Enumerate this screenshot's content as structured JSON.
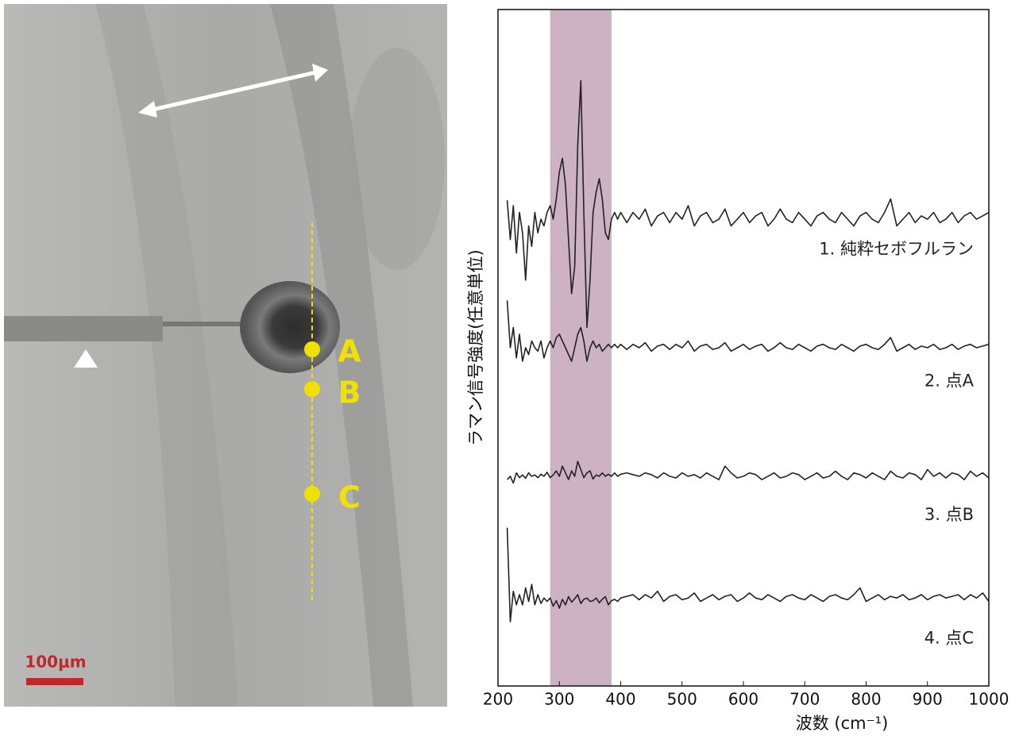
{
  "chart_data": {
    "type": "line",
    "xlabel": "波数 (cm⁻¹)",
    "ylabel": "ラマン信号強度(任意単位)",
    "xlim": [
      200,
      1000
    ],
    "xticks": [
      200,
      300,
      400,
      500,
      600,
      700,
      800,
      900,
      1000
    ],
    "ylim": [
      0,
      100
    ],
    "highlight": [
      285,
      385
    ],
    "highlight_color": "#cdb2c4",
    "x": [
      215,
      220,
      225,
      230,
      235,
      240,
      245,
      250,
      255,
      260,
      265,
      270,
      275,
      280,
      285,
      290,
      295,
      300,
      305,
      310,
      315,
      320,
      325,
      330,
      335,
      340,
      345,
      350,
      355,
      360,
      365,
      370,
      375,
      380,
      385,
      390,
      395,
      400,
      410,
      420,
      430,
      440,
      450,
      460,
      470,
      480,
      490,
      500,
      510,
      520,
      530,
      540,
      550,
      560,
      570,
      580,
      590,
      600,
      610,
      620,
      630,
      640,
      650,
      660,
      670,
      680,
      690,
      700,
      710,
      720,
      730,
      740,
      750,
      760,
      770,
      780,
      790,
      800,
      810,
      820,
      830,
      840,
      850,
      860,
      870,
      880,
      890,
      900,
      910,
      920,
      930,
      940,
      950,
      960,
      970,
      980,
      990,
      1000
    ],
    "series": [
      {
        "name": "1. 純粋セボフルラン",
        "color": "#222222",
        "values": [
          71.8,
          66,
          71,
          64,
          70,
          67,
          60,
          68,
          65,
          70,
          67,
          69,
          68,
          70,
          71,
          69,
          72,
          76,
          78,
          74,
          66,
          58,
          62,
          80,
          89.5,
          70,
          53,
          60,
          70,
          73,
          75,
          72,
          67,
          66,
          69,
          70,
          69,
          70,
          68.5,
          70,
          69,
          70.5,
          68,
          69.5,
          70,
          68.5,
          70,
          69,
          71,
          68,
          69.5,
          70,
          68.5,
          69,
          70.5,
          68,
          69,
          70,
          68.5,
          69.5,
          70,
          68,
          69,
          70.5,
          69,
          68.5,
          70,
          69,
          68,
          69.5,
          70,
          69,
          68.5,
          70,
          69,
          68,
          69.5,
          70,
          69,
          68.5,
          70,
          72,
          68,
          69,
          70,
          68.5,
          69.5,
          69,
          70,
          68.5,
          69,
          70,
          68.5,
          69.5,
          70,
          69,
          69.5,
          70
        ]
      },
      {
        "name": "2. 点A",
        "color": "#222222",
        "values": [
          57,
          50,
          53,
          48.5,
          52,
          48,
          50,
          49,
          51,
          50,
          49.5,
          51,
          48.5,
          50,
          51,
          50,
          51.5,
          52,
          51,
          50,
          49,
          48,
          50,
          52,
          53,
          51,
          48,
          50,
          51,
          50,
          50.5,
          49.5,
          50,
          50.5,
          50,
          50.5,
          50,
          50.5,
          49.75,
          50.5,
          50,
          50.75,
          49.5,
          50.25,
          50.5,
          49.75,
          50.5,
          50,
          51,
          49.5,
          50.25,
          50.5,
          49.75,
          50,
          50.75,
          49.5,
          50,
          50.5,
          49.75,
          50.25,
          50.5,
          49.5,
          50,
          50.75,
          50,
          49.75,
          50.5,
          50,
          49.5,
          50.25,
          50.5,
          50,
          49.75,
          50.5,
          50,
          49.5,
          50.25,
          50.5,
          50,
          49.75,
          50.5,
          51.5,
          49.5,
          50,
          50.5,
          49.75,
          50.25,
          50,
          50.5,
          49.75,
          50,
          50.5,
          49.75,
          50.25,
          50.5,
          50,
          50.25,
          50.5
        ]
      },
      {
        "name": "3. 点B",
        "color": "#222222",
        "values": [
          30.5,
          31,
          30,
          31.5,
          30.8,
          31.2,
          30.7,
          31.5,
          31,
          31.2,
          30.8,
          31.3,
          31,
          31.6,
          30.8,
          31.2,
          31.8,
          31,
          32.5,
          31.5,
          30.5,
          31.8,
          31,
          33.2,
          32,
          30.8,
          31.5,
          31.8,
          30.6,
          31.2,
          31,
          31.5,
          31,
          31.3,
          31,
          31.5,
          31,
          31.3,
          31.5,
          31.25,
          31,
          31.5,
          31.25,
          30.75,
          31.5,
          31,
          30.75,
          31.5,
          31,
          31.25,
          30.75,
          31.5,
          31,
          30.5,
          32.5,
          31.5,
          30.75,
          31,
          31.5,
          31.25,
          30.5,
          31,
          31.5,
          30.75,
          31,
          31.5,
          31.25,
          30.5,
          31,
          31.5,
          30.75,
          31,
          31.75,
          31,
          30.5,
          31.5,
          31.25,
          30.75,
          31.5,
          31,
          30.5,
          31.75,
          31,
          30.75,
          31.5,
          31.25,
          30.5,
          32,
          31,
          31.5,
          30.75,
          31.5,
          31.25,
          30.5,
          31.75,
          31,
          31.5,
          30.75
        ]
      },
      {
        "name": "4. 点C",
        "color": "#222222",
        "values": [
          23.4,
          9.5,
          14,
          12,
          13.5,
          12,
          14.5,
          12.5,
          15,
          12,
          13.5,
          12.2,
          13,
          12.5,
          13,
          11.8,
          12.6,
          11.5,
          12.8,
          12,
          13.2,
          12.4,
          12.9,
          13.5,
          12.2,
          12.8,
          13,
          12.5,
          12.6,
          13,
          12.3,
          12.8,
          13.2,
          12,
          12.6,
          12.8,
          12.5,
          13,
          13.25,
          13.5,
          12.75,
          13.5,
          13,
          14,
          12.5,
          13.25,
          13.5,
          12.75,
          13,
          13.75,
          12.5,
          13,
          13.5,
          12.75,
          13.25,
          13.5,
          12.5,
          13,
          13.75,
          13,
          12.75,
          13.5,
          13,
          12.5,
          13.25,
          13.5,
          13,
          12.75,
          13.5,
          13,
          12.5,
          13.25,
          13.5,
          13,
          12.75,
          13.5,
          14.5,
          12.5,
          13,
          13.5,
          12.75,
          13.25,
          13,
          13.5,
          12.75,
          13,
          13.5,
          12.75,
          13.25,
          13.5,
          13,
          13.25,
          13.5,
          12.75,
          13.5,
          13,
          13.75,
          12.5
        ]
      }
    ]
  },
  "image": {
    "points": [
      "A",
      "B",
      "C"
    ],
    "scale_bar": "100μm"
  }
}
